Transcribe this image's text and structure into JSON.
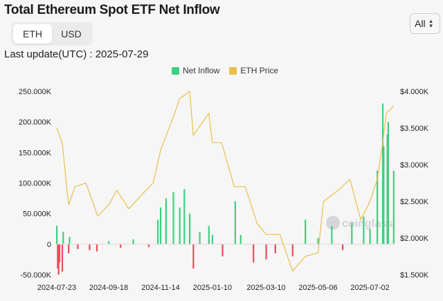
{
  "header": {
    "title": "Total Ethereum Spot ETF Net Inflow",
    "unit_toggle": [
      "ETH",
      "USD"
    ],
    "active_unit": "ETH",
    "range_value": "All",
    "last_update": "Last update(UTC) : 2025-07-29"
  },
  "watermark": "coinglass",
  "colors": {
    "inflow_positive": "#3fcf7f",
    "inflow_negative": "#ee4a5a",
    "price_line": "#e9bf4a"
  },
  "chart_data": {
    "type": "bar",
    "title": "Total Ethereum Spot ETF Net Inflow",
    "legend_position": "top-center",
    "grid": false,
    "x_tick_labels": [
      "2024-07-23",
      "2024-09-18",
      "2024-11-14",
      "2025-01-10",
      "2025-03-10",
      "2025-05-06",
      "2025-07-02"
    ],
    "y_left": {
      "range": [
        -50000,
        250000
      ],
      "tick_labels": [
        "-50.000K",
        "0",
        "50.000K",
        "100.000K",
        "150.000K",
        "200.000K",
        "250.000K"
      ],
      "tick_values": [
        -50000,
        0,
        50000,
        100000,
        150000,
        200000,
        250000
      ]
    },
    "y_right": {
      "range": [
        1500,
        4000
      ],
      "tick_labels": [
        "$1.500K",
        "$2.000K",
        "$2.500K",
        "$3.000K",
        "$3.500K",
        "$4.000K"
      ],
      "tick_values": [
        1500,
        2000,
        2500,
        3000,
        3500,
        4000
      ]
    },
    "series": [
      {
        "name": "Net Inflow",
        "type": "bar",
        "axis": "left",
        "x": [
          "2024-07-23",
          "2024-07-24",
          "2024-07-25",
          "2024-07-26",
          "2024-07-29",
          "2024-07-30",
          "2024-08-05",
          "2024-08-06",
          "2024-08-15",
          "2024-08-28",
          "2024-09-05",
          "2024-09-18",
          "2024-10-01",
          "2024-10-15",
          "2024-11-01",
          "2024-11-11",
          "2024-11-14",
          "2024-11-20",
          "2024-11-28",
          "2024-12-05",
          "2024-12-10",
          "2024-12-16",
          "2024-12-20",
          "2024-12-27",
          "2025-01-06",
          "2025-01-10",
          "2025-01-21",
          "2025-02-04",
          "2025-02-10",
          "2025-02-24",
          "2025-03-10",
          "2025-03-20",
          "2025-04-08",
          "2025-04-22",
          "2025-05-06",
          "2025-05-21",
          "2025-06-02",
          "2025-06-12",
          "2025-06-25",
          "2025-07-02",
          "2025-07-10",
          "2025-07-16",
          "2025-07-17",
          "2025-07-21",
          "2025-07-22",
          "2025-07-28"
        ],
        "values": [
          30000,
          -40000,
          -50000,
          -30000,
          -45000,
          20000,
          -15000,
          12000,
          -8000,
          -10000,
          -12000,
          5000,
          -6000,
          8000,
          -5000,
          40000,
          60000,
          75000,
          85000,
          60000,
          90000,
          50000,
          -40000,
          20000,
          30000,
          15000,
          -20000,
          70000,
          15000,
          -30000,
          -25000,
          -15000,
          -20000,
          40000,
          10000,
          30000,
          -10000,
          35000,
          45000,
          25000,
          120000,
          230000,
          160000,
          180000,
          200000,
          120000
        ]
      },
      {
        "name": "ETH Price",
        "type": "line",
        "axis": "right",
        "x": [
          "2024-07-23",
          "2024-07-29",
          "2024-08-05",
          "2024-08-12",
          "2024-08-24",
          "2024-09-06",
          "2024-09-18",
          "2024-09-27",
          "2024-10-10",
          "2024-10-29",
          "2024-11-06",
          "2024-11-14",
          "2024-11-28",
          "2024-12-05",
          "2024-12-16",
          "2024-12-20",
          "2025-01-06",
          "2025-01-10",
          "2025-01-20",
          "2025-02-03",
          "2025-02-15",
          "2025-02-28",
          "2025-03-10",
          "2025-03-25",
          "2025-04-08",
          "2025-04-22",
          "2025-05-06",
          "2025-05-12",
          "2025-05-28",
          "2025-06-10",
          "2025-06-22",
          "2025-07-02",
          "2025-07-10",
          "2025-07-16",
          "2025-07-20",
          "2025-07-28"
        ],
        "values": [
          3500,
          3300,
          2450,
          2700,
          2750,
          2300,
          2450,
          2650,
          2400,
          2650,
          2750,
          3200,
          3650,
          3900,
          4000,
          3400,
          3700,
          3300,
          3300,
          2700,
          2700,
          2200,
          2050,
          2050,
          1550,
          1750,
          1800,
          2500,
          2650,
          2800,
          2250,
          2500,
          2800,
          3300,
          3700,
          3800
        ]
      }
    ]
  }
}
